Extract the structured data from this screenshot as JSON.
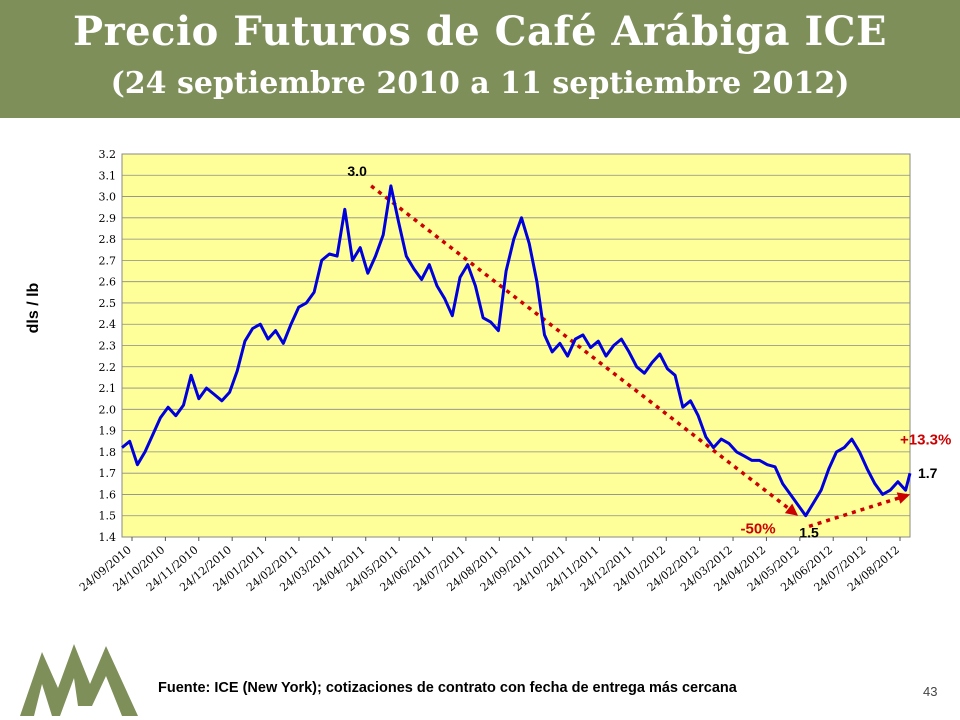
{
  "header": {
    "title": "Precio Futuros de Café Arábiga ICE",
    "subtitle": "(24 septiembre 2010 a 11 septiembre 2012)"
  },
  "footer": {
    "source": "Fuente: ICE (New York); cotizaciones de contrato con fecha de entrega más cercana",
    "page_number": "43"
  },
  "colors": {
    "header_bg": "#7f8f5a",
    "plot_bg": "#ffff99",
    "series_line": "#0000dd",
    "annotation": "#cc0000"
  },
  "chart_data": {
    "type": "line",
    "title": "",
    "xlabel": "",
    "ylabel": "dls / lb",
    "ylim": [
      1.4,
      3.2
    ],
    "yticks": [
      "1.4",
      "1.5",
      "1.6",
      "1.7",
      "1.8",
      "1.9",
      "2.0",
      "2.1",
      "2.2",
      "2.3",
      "2.4",
      "2.5",
      "2.6",
      "2.7",
      "2.8",
      "2.9",
      "3.0",
      "3.1",
      "3.2"
    ],
    "xticks": [
      "24/09/2010",
      "24/10/2010",
      "24/11/2010",
      "24/12/2010",
      "24/01/2011",
      "24/02/2011",
      "24/03/2011",
      "24/04/2011",
      "24/05/2011",
      "24/06/2011",
      "24/07/2011",
      "24/08/2011",
      "24/09/2011",
      "24/10/2011",
      "24/11/2011",
      "24/12/2011",
      "24/01/2012",
      "24/02/2012",
      "24/03/2012",
      "24/04/2012",
      "24/05/2012",
      "24/06/2012",
      "24/07/2012",
      "24/08/2012"
    ],
    "grid": true,
    "legend": "none",
    "series": [
      {
        "x": [
          "2010-09-24",
          "2010-10-01",
          "2010-10-08",
          "2010-10-15",
          "2010-10-22",
          "2010-10-29",
          "2010-11-05",
          "2010-11-12",
          "2010-11-19",
          "2010-11-26",
          "2010-12-03",
          "2010-12-10",
          "2010-12-17",
          "2010-12-24",
          "2010-12-31",
          "2011-01-07",
          "2011-01-14",
          "2011-01-21",
          "2011-01-28",
          "2011-02-04",
          "2011-02-11",
          "2011-02-18",
          "2011-02-25",
          "2011-03-04",
          "2011-03-11",
          "2011-03-18",
          "2011-03-25",
          "2011-04-01",
          "2011-04-08",
          "2011-04-15",
          "2011-04-22",
          "2011-04-29",
          "2011-05-06",
          "2011-05-13",
          "2011-05-20",
          "2011-05-27",
          "2011-06-03",
          "2011-06-10",
          "2011-06-17",
          "2011-06-24",
          "2011-07-01",
          "2011-07-08",
          "2011-07-15",
          "2011-07-22",
          "2011-07-29",
          "2011-08-05",
          "2011-08-12",
          "2011-08-19",
          "2011-08-26",
          "2011-09-02",
          "2011-09-09",
          "2011-09-16",
          "2011-09-23",
          "2011-09-30",
          "2011-10-07",
          "2011-10-14",
          "2011-10-21",
          "2011-10-28",
          "2011-11-04",
          "2011-11-11",
          "2011-11-18",
          "2011-11-25",
          "2011-12-02",
          "2011-12-09",
          "2011-12-16",
          "2011-12-23",
          "2011-12-30",
          "2012-01-06",
          "2012-01-13",
          "2012-01-20",
          "2012-01-27",
          "2012-02-03",
          "2012-02-10",
          "2012-02-17",
          "2012-02-24",
          "2012-03-02",
          "2012-03-09",
          "2012-03-16",
          "2012-03-23",
          "2012-03-30",
          "2012-04-06",
          "2012-04-13",
          "2012-04-20",
          "2012-04-27",
          "2012-05-04",
          "2012-05-11",
          "2012-05-18",
          "2012-05-25",
          "2012-06-01",
          "2012-06-08",
          "2012-06-15",
          "2012-06-22",
          "2012-06-29",
          "2012-07-06",
          "2012-07-13",
          "2012-07-20",
          "2012-07-27",
          "2012-08-03",
          "2012-08-10",
          "2012-08-17",
          "2012-08-24",
          "2012-08-31",
          "2012-09-07",
          "2012-09-11"
        ],
        "values": [
          1.82,
          1.85,
          1.74,
          1.8,
          1.88,
          1.96,
          2.01,
          1.97,
          2.02,
          2.16,
          2.05,
          2.1,
          2.07,
          2.04,
          2.08,
          2.18,
          2.32,
          2.38,
          2.4,
          2.33,
          2.37,
          2.31,
          2.4,
          2.48,
          2.5,
          2.55,
          2.7,
          2.73,
          2.72,
          2.94,
          2.7,
          2.76,
          2.64,
          2.72,
          2.82,
          3.05,
          2.88,
          2.72,
          2.66,
          2.61,
          2.68,
          2.58,
          2.52,
          2.44,
          2.62,
          2.68,
          2.58,
          2.43,
          2.41,
          2.37,
          2.65,
          2.8,
          2.9,
          2.78,
          2.6,
          2.35,
          2.27,
          2.31,
          2.25,
          2.33,
          2.35,
          2.29,
          2.32,
          2.25,
          2.3,
          2.33,
          2.27,
          2.2,
          2.17,
          2.22,
          2.26,
          2.19,
          2.16,
          2.01,
          2.04,
          1.97,
          1.87,
          1.82,
          1.86,
          1.84,
          1.8,
          1.78,
          1.76,
          1.76,
          1.74,
          1.73,
          1.65,
          1.6,
          1.55,
          1.5,
          1.56,
          1.62,
          1.72,
          1.8,
          1.82,
          1.86,
          1.8,
          1.72,
          1.65,
          1.6,
          1.62,
          1.66,
          1.62,
          1.7
        ]
      }
    ],
    "annotations": [
      {
        "label": "3.0",
        "date": "2011-05-09",
        "value": 3.05
      },
      {
        "label": "1.5",
        "date": "2012-06-11",
        "value": 1.5
      },
      {
        "label": "1.7",
        "date": "2012-09-11",
        "value": 1.7
      },
      {
        "label": "-50%",
        "from": [
          "2011-05-09",
          3.05
        ],
        "to": [
          "2012-06-01",
          1.5
        ]
      },
      {
        "label": "+13.3%",
        "from": [
          "2012-06-11",
          1.45
        ],
        "to": [
          "2012-09-11",
          1.6
        ]
      }
    ]
  }
}
